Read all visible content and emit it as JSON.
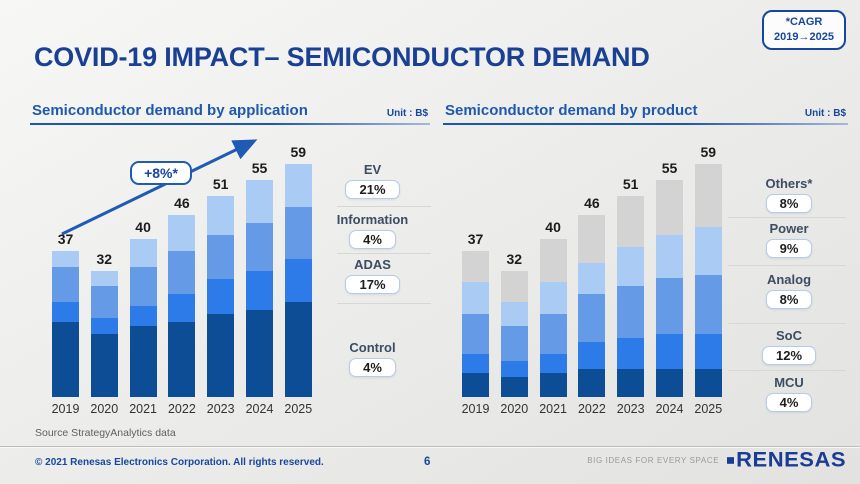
{
  "slide": {
    "title": "COVID-19 IMPACT– SEMICONDUCTOR DEMAND",
    "cagr_box": {
      "line1": "*CAGR",
      "line2": "2019→2025"
    },
    "source": "Source StrategyAnalytics data",
    "footer": {
      "copyright": "© 2021 Renesas Electronics Corporation. All rights reserved.",
      "page_number": "6",
      "tagline": "BIG IDEAS FOR EVERY SPACE",
      "logo": "RENESAS"
    }
  },
  "colors": {
    "title_blue": "#1a4094",
    "chart_title_blue": "#1e59b0",
    "accent_blue": "#1f5bb5",
    "footer_blue": "#17469e",
    "divider_gray": "#d7d7d5"
  },
  "chart_data": [
    {
      "type": "bar",
      "stacked": true,
      "title": "Semiconductor demand by application",
      "unit_label": "Unit : B$",
      "annotation": "+8%*",
      "annotation_meaning": "CAGR 2019→2025 of total demand",
      "categories": [
        "2019",
        "2020",
        "2021",
        "2022",
        "2023",
        "2024",
        "2025"
      ],
      "totals": [
        37,
        32,
        40,
        46,
        51,
        55,
        59
      ],
      "ylim": [
        0,
        62
      ],
      "legend_position": "right",
      "series": [
        {
          "name": "Control",
          "cagr": "4%",
          "color": "#0d4d95",
          "values": [
            19,
            16,
            18,
            19,
            21,
            22,
            24
          ]
        },
        {
          "name": "ADAS",
          "cagr": "17%",
          "color": "#2d7be8",
          "values": [
            5,
            4,
            5,
            7,
            9,
            10,
            11
          ]
        },
        {
          "name": "Information",
          "cagr": "4%",
          "color": "#659ae6",
          "values": [
            9,
            8,
            10,
            11,
            11,
            12,
            13
          ]
        },
        {
          "name": "EV",
          "cagr": "21%",
          "color": "#a9cbf4",
          "values": [
            4,
            4,
            7,
            9,
            10,
            11,
            11
          ]
        }
      ]
    },
    {
      "type": "bar",
      "stacked": true,
      "title": "Semiconductor demand by product",
      "unit_label": "Unit : B$",
      "categories": [
        "2019",
        "2020",
        "2021",
        "2022",
        "2023",
        "2024",
        "2025"
      ],
      "totals": [
        37,
        32,
        40,
        46,
        51,
        55,
        59
      ],
      "ylim": [
        0,
        62
      ],
      "legend_position": "right",
      "series": [
        {
          "name": "MCU",
          "cagr": "4%",
          "color": "#0d4d95",
          "values": [
            6,
            5,
            6,
            7,
            7,
            7,
            7
          ]
        },
        {
          "name": "SoC",
          "cagr": "12%",
          "color": "#2d7be8",
          "values": [
            5,
            4,
            5,
            7,
            8,
            9,
            9
          ]
        },
        {
          "name": "Analog",
          "cagr": "8%",
          "color": "#659ae6",
          "values": [
            10,
            9,
            10,
            12,
            13,
            14,
            15
          ]
        },
        {
          "name": "Power",
          "cagr": "9%",
          "color": "#a9cbf4",
          "values": [
            8,
            6,
            8,
            8,
            10,
            11,
            12
          ]
        },
        {
          "name": "Others*",
          "cagr": "8%",
          "color": "#d3d3d3",
          "values": [
            8,
            8,
            11,
            12,
            13,
            14,
            16
          ]
        }
      ]
    }
  ]
}
